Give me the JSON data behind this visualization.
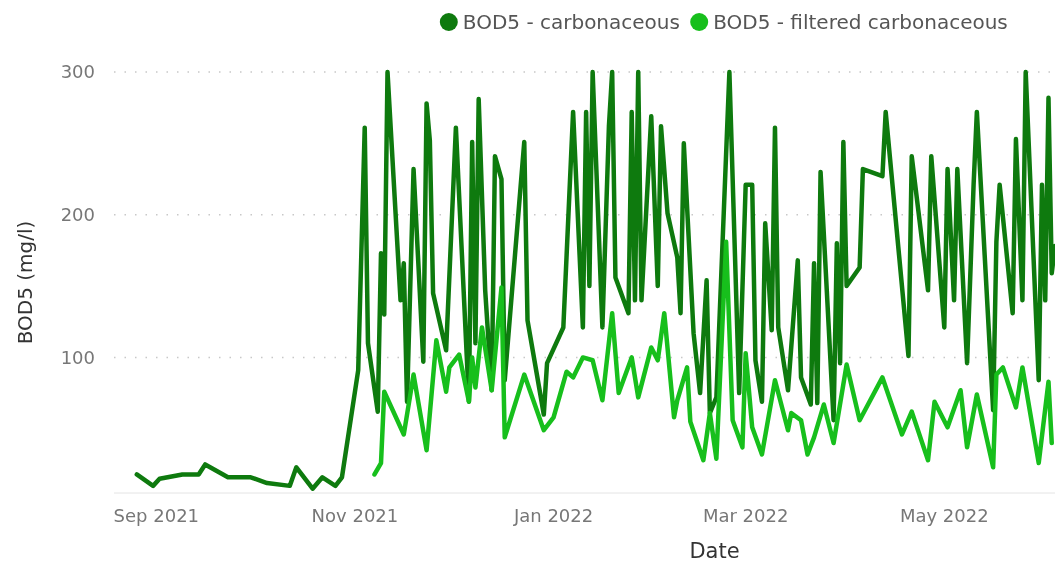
{
  "chart_data": {
    "type": "line",
    "xlabel": "Date",
    "ylabel": "BOD5 (mg/l)",
    "xlim": [
      "2021-08-19",
      "2022-06-04"
    ],
    "ylim": [
      5,
      300
    ],
    "yticks": [
      100,
      200,
      300
    ],
    "xticks": [
      {
        "value": "2021-09-01",
        "label": "Sep 2021"
      },
      {
        "value": "2021-11-01",
        "label": "Nov 2021"
      },
      {
        "value": "2022-01-01",
        "label": "Jan 2022"
      },
      {
        "value": "2022-03-01",
        "label": "Mar 2022"
      },
      {
        "value": "2022-05-01",
        "label": "May 2022"
      }
    ],
    "grid": "y",
    "legend": "top right",
    "series": [
      {
        "name": "BOD5 - carbonaceous",
        "color": "#0e7a0e",
        "x": [
          "2021-08-26",
          "2021-08-31",
          "2021-09-02",
          "2021-09-09",
          "2021-09-14",
          "2021-09-16",
          "2021-09-23",
          "2021-09-30",
          "2021-10-05",
          "2021-10-12",
          "2021-10-14",
          "2021-10-19",
          "2021-10-22",
          "2021-10-26",
          "2021-10-28",
          "2021-11-02",
          "2021-11-04",
          "2021-11-05",
          "2021-11-08",
          "2021-11-09",
          "2021-11-10",
          "2021-11-11",
          "2021-11-15",
          "2021-11-16",
          "2021-11-17",
          "2021-11-19",
          "2021-11-22",
          "2021-11-23",
          "2021-11-24",
          "2021-11-25",
          "2021-11-29",
          "2021-12-02",
          "2021-12-06",
          "2021-12-07",
          "2021-12-08",
          "2021-12-09",
          "2021-12-11",
          "2021-12-13",
          "2021-12-14",
          "2021-12-16",
          "2021-12-17",
          "2021-12-23",
          "2021-12-24",
          "2021-12-29",
          "2021-12-30",
          "2022-01-04",
          "2022-01-07",
          "2022-01-10",
          "2022-01-11",
          "2022-01-12",
          "2022-01-13",
          "2022-01-16",
          "2022-01-18",
          "2022-01-19",
          "2022-01-20",
          "2022-01-24",
          "2022-01-25",
          "2022-01-26",
          "2022-01-27",
          "2022-01-28",
          "2022-01-31",
          "2022-02-02",
          "2022-02-03",
          "2022-02-05",
          "2022-02-08",
          "2022-02-09",
          "2022-02-10",
          "2022-02-13",
          "2022-02-15",
          "2022-02-17",
          "2022-02-18",
          "2022-02-20",
          "2022-02-24",
          "2022-02-27",
          "2022-03-01",
          "2022-03-03",
          "2022-03-04",
          "2022-03-06",
          "2022-03-07",
          "2022-03-09",
          "2022-03-10",
          "2022-03-11",
          "2022-03-14",
          "2022-03-17",
          "2022-03-18",
          "2022-03-21",
          "2022-03-22",
          "2022-03-23",
          "2022-03-24",
          "2022-03-28",
          "2022-03-29",
          "2022-03-30",
          "2022-03-31",
          "2022-04-01",
          "2022-04-05",
          "2022-04-06",
          "2022-04-12",
          "2022-04-13",
          "2022-04-20",
          "2022-04-21",
          "2022-04-26",
          "2022-04-27",
          "2022-05-01",
          "2022-05-02",
          "2022-05-04",
          "2022-05-05",
          "2022-05-08",
          "2022-05-10",
          "2022-05-11",
          "2022-05-16",
          "2022-05-17",
          "2022-05-18",
          "2022-05-22",
          "2022-05-23",
          "2022-05-25",
          "2022-05-26",
          "2022-05-30",
          "2022-05-31",
          "2022-06-01",
          "2022-06-02",
          "2022-06-03",
          "2022-06-04"
        ],
        "values": [
          18,
          10,
          15,
          18,
          18,
          25,
          16,
          16,
          12,
          10,
          23,
          8,
          16,
          10,
          16,
          91,
          261,
          110,
          62,
          173,
          130,
          300,
          140,
          166,
          69,
          232,
          97,
          278,
          252,
          145,
          105,
          261,
          69,
          251,
          110,
          281,
          147,
          77,
          241,
          225,
          84,
          251,
          126,
          60,
          96,
          121,
          272,
          121,
          272,
          150,
          300,
          121,
          262,
          300,
          156,
          131,
          272,
          140,
          300,
          140,
          269,
          150,
          262,
          201,
          170,
          131,
          250,
          117,
          75,
          154,
          61,
          72,
          300,
          75,
          221,
          221,
          98,
          69,
          194,
          119,
          261,
          121,
          77,
          168,
          86,
          67,
          166,
          68,
          230,
          56,
          180,
          96,
          251,
          150,
          163,
          232,
          227,
          272,
          101,
          241,
          147,
          241,
          121,
          232,
          140,
          232,
          96,
          221,
          272,
          63,
          181,
          221,
          131,
          253,
          140,
          300,
          84,
          221,
          140,
          282,
          159,
          178
        ]
      },
      {
        "name": "BOD5 - filtered carbonaceous",
        "color": "#17bf1c",
        "x": [
          "2021-11-07",
          "2021-11-09",
          "2021-11-10",
          "2021-11-16",
          "2021-11-19",
          "2021-11-23",
          "2021-11-26",
          "2021-11-29",
          "2021-11-30",
          "2021-12-03",
          "2021-12-06",
          "2021-12-07",
          "2021-12-08",
          "2021-12-10",
          "2021-12-13",
          "2021-12-16",
          "2021-12-17",
          "2021-12-23",
          "2021-12-29",
          "2022-01-01",
          "2022-01-05",
          "2022-01-07",
          "2022-01-10",
          "2022-01-13",
          "2022-01-16",
          "2022-01-19",
          "2022-01-21",
          "2022-01-25",
          "2022-01-27",
          "2022-01-31",
          "2022-02-02",
          "2022-02-04",
          "2022-02-07",
          "2022-02-08",
          "2022-02-11",
          "2022-02-12",
          "2022-02-16",
          "2022-02-18",
          "2022-02-20",
          "2022-02-23",
          "2022-02-25",
          "2022-02-28",
          "2022-03-01",
          "2022-03-03",
          "2022-03-06",
          "2022-03-10",
          "2022-03-14",
          "2022-03-15",
          "2022-03-18",
          "2022-03-20",
          "2022-03-22",
          "2022-03-25",
          "2022-03-28",
          "2022-04-01",
          "2022-04-05",
          "2022-04-12",
          "2022-04-18",
          "2022-04-21",
          "2022-04-26",
          "2022-04-28",
          "2022-05-02",
          "2022-05-06",
          "2022-05-08",
          "2022-05-11",
          "2022-05-16",
          "2022-05-17",
          "2022-05-19",
          "2022-05-23",
          "2022-05-25",
          "2022-05-30",
          "2022-06-02",
          "2022-06-03"
        ],
        "values": [
          18,
          26,
          76,
          46,
          88,
          35,
          112,
          76,
          93,
          102,
          69,
          100,
          79,
          121,
          77,
          149,
          44,
          88,
          49,
          58,
          90,
          86,
          100,
          98,
          70,
          131,
          75,
          100,
          72,
          107,
          98,
          131,
          58,
          70,
          93,
          55,
          28,
          61,
          29,
          181,
          56,
          37,
          103,
          51,
          32,
          84,
          49,
          61,
          56,
          32,
          44,
          67,
          40,
          95,
          56,
          86,
          46,
          62,
          28,
          69,
          51,
          77,
          37,
          74,
          23,
          88,
          93,
          65,
          93,
          26,
          83,
          40
        ]
      }
    ]
  }
}
